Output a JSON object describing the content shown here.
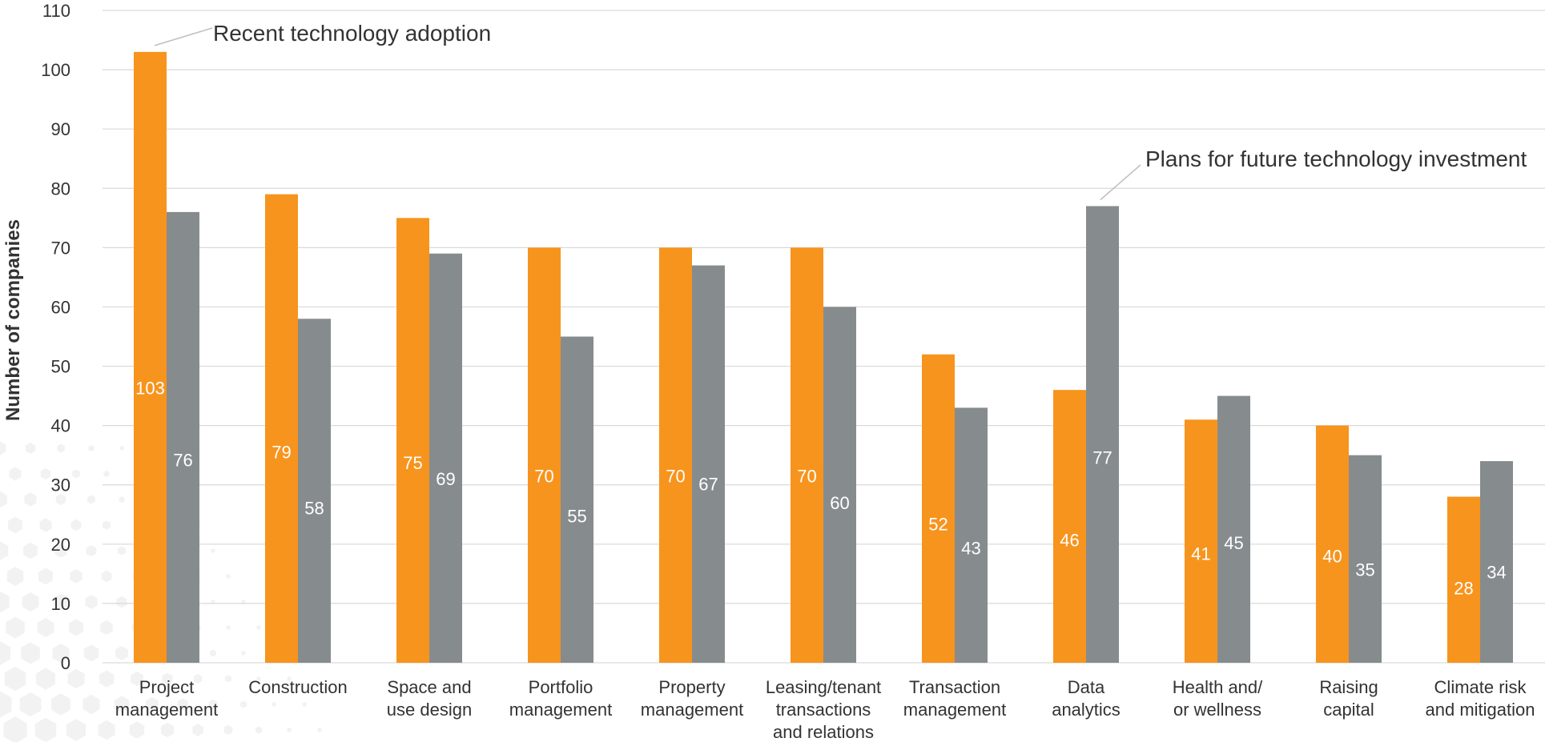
{
  "chart_data": {
    "type": "bar",
    "ylabel": "Number of companies",
    "ylim": [
      0,
      110
    ],
    "yticks": [
      0,
      10,
      20,
      30,
      40,
      50,
      60,
      70,
      80,
      90,
      100,
      110
    ],
    "grid": true,
    "categories": [
      [
        "Project",
        "management"
      ],
      [
        "Construction"
      ],
      [
        "Space and",
        "use design"
      ],
      [
        "Portfolio",
        "management"
      ],
      [
        "Property",
        "management"
      ],
      [
        "Leasing/tenant",
        "transactions",
        "and relations"
      ],
      [
        "Transaction",
        "management"
      ],
      [
        "Data",
        "analytics"
      ],
      [
        "Health and/",
        "or wellness"
      ],
      [
        "Raising",
        "capital"
      ],
      [
        "Climate risk",
        "and mitigation"
      ]
    ],
    "series": [
      {
        "name": "Recent technology adoption",
        "color": "#f7941d",
        "values": [
          103,
          79,
          75,
          70,
          70,
          70,
          52,
          46,
          41,
          40,
          28
        ]
      },
      {
        "name": "Plans for future technology investment",
        "color": "#868b8e",
        "values": [
          76,
          58,
          69,
          55,
          67,
          60,
          43,
          77,
          45,
          35,
          34
        ]
      }
    ]
  }
}
